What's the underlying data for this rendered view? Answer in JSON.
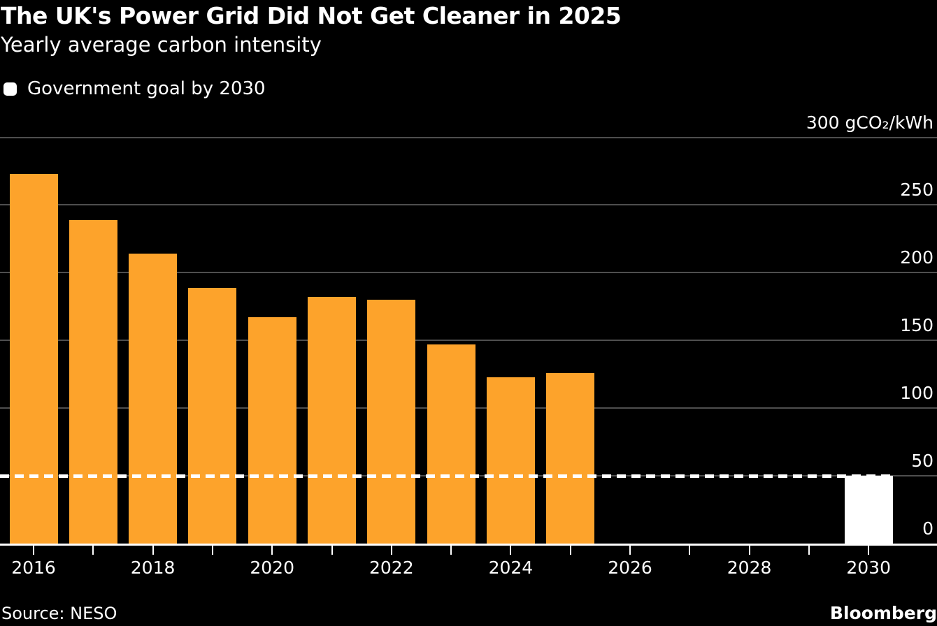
{
  "header": {
    "title": "The UK's Power Grid Did Not Get Cleaner in 2025",
    "subtitle": "Yearly average carbon intensity"
  },
  "legend": {
    "items": [
      {
        "label": "Government goal by 2030",
        "swatch_color": "#FFFFFF",
        "swatch_shape": "rounded-square"
      }
    ]
  },
  "footer": {
    "source": "Source: NESO",
    "brand": "Bloomberg"
  },
  "colors": {
    "background": "#000000",
    "bar_orange": "#FDA32B",
    "goal_white": "#FFFFFF",
    "gridline": "#4E4E4E",
    "axis": "#FFFFFF",
    "text": "#FFFFFF"
  },
  "chart_data": {
    "type": "bar",
    "title": "The UK's Power Grid Did Not Get Cleaner in 2025",
    "subtitle": "Yearly average carbon intensity",
    "xlabel": "",
    "ylabel": "gCO₂/kWh",
    "ylim": [
      0,
      300
    ],
    "grid": "horizontal",
    "legend_position": "top-left",
    "y_axis": {
      "ticks": [
        0,
        50,
        100,
        150,
        200,
        250,
        300
      ],
      "unit_label": "300 gCO₂/kWh"
    },
    "x_axis": {
      "years": [
        2016,
        2017,
        2018,
        2019,
        2020,
        2021,
        2022,
        2023,
        2024,
        2025,
        2026,
        2027,
        2028,
        2029,
        2030
      ],
      "labeled_years": [
        2016,
        2018,
        2020,
        2022,
        2024,
        2026,
        2028,
        2030
      ]
    },
    "series": [
      {
        "name": "Yearly average carbon intensity",
        "color": "#FDA32B",
        "points": [
          {
            "year": 2016,
            "value": 273
          },
          {
            "year": 2017,
            "value": 239
          },
          {
            "year": 2018,
            "value": 214
          },
          {
            "year": 2019,
            "value": 189
          },
          {
            "year": 2020,
            "value": 167
          },
          {
            "year": 2021,
            "value": 182
          },
          {
            "year": 2022,
            "value": 180
          },
          {
            "year": 2023,
            "value": 147
          },
          {
            "year": 2024,
            "value": 123
          },
          {
            "year": 2025,
            "value": 126
          }
        ]
      },
      {
        "name": "Government goal by 2030",
        "role": "goal",
        "color": "#FFFFFF",
        "points": [
          {
            "year": 2030,
            "value": 50
          }
        ]
      }
    ],
    "goal_line": {
      "value": 50,
      "style": "dashed",
      "color": "#FFFFFF",
      "spans_years": [
        2016,
        2030
      ]
    }
  }
}
